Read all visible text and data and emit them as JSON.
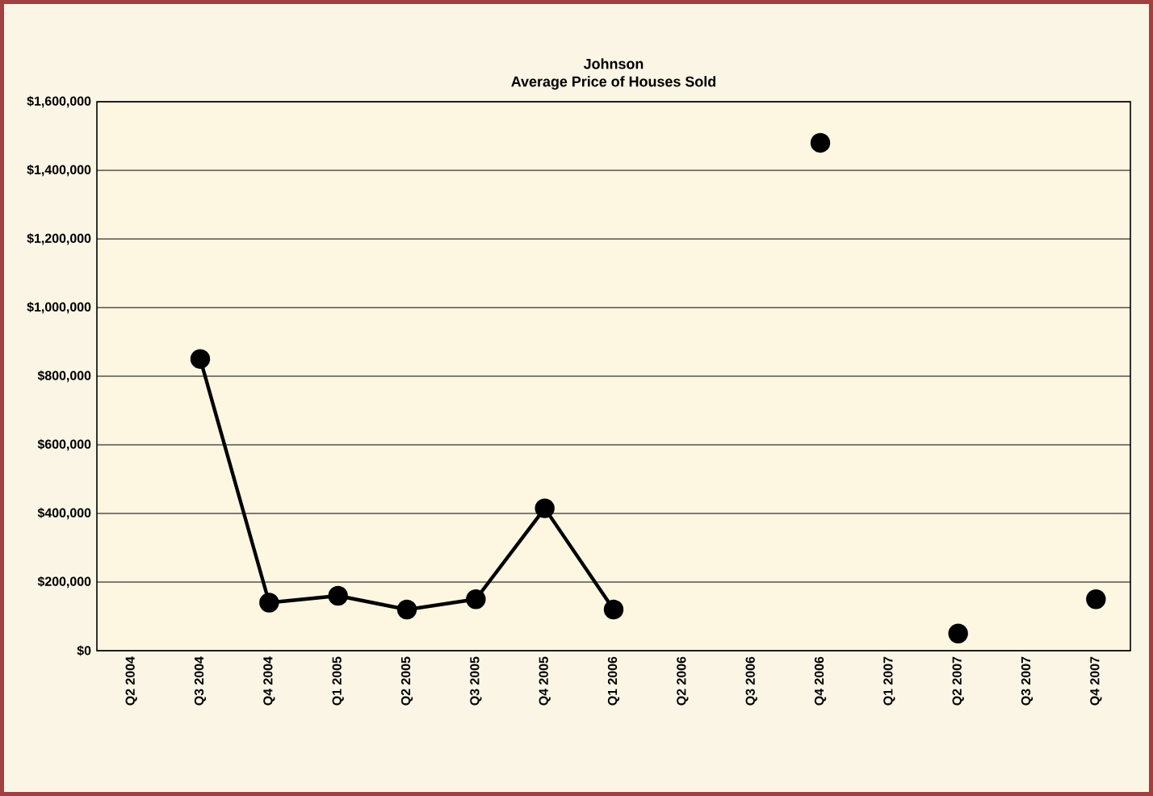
{
  "chart_data": {
    "type": "line",
    "title": "Johnson",
    "subtitle": "Average Price of Houses Sold",
    "categories": [
      "Q2 2004",
      "Q3 2004",
      "Q4 2004",
      "Q1 2005",
      "Q2 2005",
      "Q3 2005",
      "Q4 2005",
      "Q1 2006",
      "Q2 2006",
      "Q3 2006",
      "Q4 2006",
      "Q1 2007",
      "Q2 2007",
      "Q3 2007",
      "Q4 2007"
    ],
    "series": [
      {
        "color": "#000000",
        "values": [
          null,
          850000,
          140000,
          160000,
          120000,
          150000,
          415000,
          120000,
          null,
          null,
          1480000,
          null,
          50000,
          null,
          150000
        ]
      }
    ],
    "ylim": [
      0,
      1600000
    ],
    "yticks": [
      {
        "value": 0,
        "label": "$0"
      },
      {
        "value": 200000,
        "label": "$200,000"
      },
      {
        "value": 400000,
        "label": "$400,000"
      },
      {
        "value": 600000,
        "label": "$600,000"
      },
      {
        "value": 800000,
        "label": "$800,000"
      },
      {
        "value": 1000000,
        "label": "$1,000,000"
      },
      {
        "value": 1200000,
        "label": "$1,200,000"
      },
      {
        "value": 1400000,
        "label": "$1,400,000"
      },
      {
        "value": 1600000,
        "label": "$1,600,000"
      }
    ],
    "grid": "y",
    "marker": "circle",
    "line_style": "solid"
  }
}
